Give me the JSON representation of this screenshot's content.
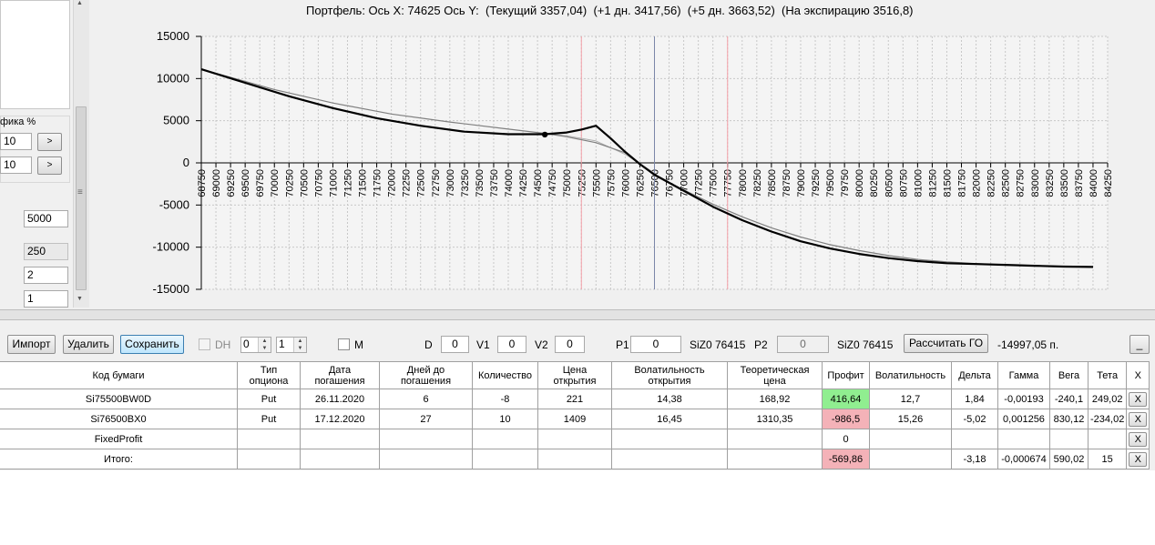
{
  "left_panel": {
    "group_label": "фика %",
    "row1_value": "10",
    "row2_value": "10",
    "step_button": ">",
    "field_a": "5000",
    "field_b": "250",
    "field_c": "2",
    "field_d": "1",
    "scroll_grip": "≡"
  },
  "chart": {
    "title": "Портфель: Ось X: 74625 Ось Y:  (Текущий 3357,04)  (+1 дн. 3417,56)  (+5 дн. 3663,52)  (На экспирацию 3516,8)"
  },
  "chart_data": {
    "type": "line",
    "x_ticks": [
      "68750",
      "69000",
      "69250",
      "69500",
      "69750",
      "70000",
      "70250",
      "70500",
      "70750",
      "71000",
      "71250",
      "71500",
      "71750",
      "72000",
      "72250",
      "72500",
      "72750",
      "73000",
      "73250",
      "73500",
      "73750",
      "74000",
      "74250",
      "74500",
      "74750",
      "75000",
      "75250",
      "75500",
      "75750",
      "76000",
      "76250",
      "76500",
      "76750",
      "77000",
      "77250",
      "77500",
      "77750",
      "78000",
      "78250",
      "78500",
      "78750",
      "79000",
      "79250",
      "79500",
      "79750",
      "80000",
      "80250",
      "80500",
      "80750",
      "81000",
      "81250",
      "81500",
      "81750",
      "82000",
      "82250",
      "82500",
      "82750",
      "83000",
      "83250",
      "83500",
      "83750",
      "84000",
      "84250"
    ],
    "y_ticks": [
      "15000",
      "10000",
      "5000",
      "0",
      "-5000",
      "-10000",
      "-15000"
    ],
    "xlim": [
      68750,
      84250
    ],
    "ylim": [
      -15000,
      15000
    ],
    "grid": true,
    "series": [
      {
        "color": "#000000",
        "x": [
          68750,
          69500,
          70250,
          71000,
          71750,
          72500,
          73250,
          74000,
          74625,
          75000,
          75250,
          75500,
          75750,
          76000,
          76250,
          76500,
          77000,
          77500,
          78000,
          78500,
          79000,
          79500,
          80000,
          80500,
          81000,
          81500,
          82000,
          82500,
          83000,
          83500,
          84000
        ],
        "y": [
          11100,
          9500,
          7900,
          6500,
          5300,
          4400,
          3700,
          3400,
          3400,
          3600,
          3950,
          4400,
          2900,
          1300,
          -150,
          -1400,
          -3300,
          -5200,
          -6800,
          -8150,
          -9300,
          -10150,
          -10800,
          -11300,
          -11650,
          -11900,
          -12000,
          -12100,
          -12200,
          -12300,
          -12350
        ]
      },
      {
        "color": "#808080",
        "x": [
          68750,
          70000,
          71000,
          72000,
          73000,
          74000,
          74625,
          75000,
          75500,
          76000,
          76250,
          76500,
          77000,
          77500,
          78000,
          78500,
          79000,
          79500,
          80000,
          80500,
          81000,
          81500,
          82000,
          82500,
          83000,
          83500,
          84000
        ],
        "y": [
          11100,
          8700,
          7100,
          5800,
          4850,
          4000,
          3500,
          3100,
          2400,
          1200,
          -150,
          -1500,
          -3200,
          -4900,
          -6400,
          -7700,
          -8800,
          -9700,
          -10400,
          -11000,
          -11450,
          -11750,
          -11950,
          -12100,
          -12200,
          -12300,
          -12350
        ]
      },
      {
        "color": "#b0b0b0",
        "x": [
          74625,
          75000,
          75500,
          76000,
          76250,
          76500
        ],
        "y": [
          3500,
          3200,
          2600,
          1000,
          -100,
          -1200
        ]
      }
    ],
    "current_point": {
      "x": 74625,
      "y": 3357.04
    },
    "vertical_lines": [
      {
        "x": 75250,
        "color": "#f4a0a8"
      },
      {
        "x": 76500,
        "color": "#7b86a8"
      },
      {
        "x": 77750,
        "color": "#f4a0a8"
      }
    ]
  },
  "toolbar": {
    "import_label": "Импорт",
    "delete_label": "Удалить",
    "save_label": "Сохранить",
    "dh_label": "DH",
    "spin1_value": "0",
    "spin2_value": "1",
    "m_label": "M",
    "d_label": "D",
    "d_value": "0",
    "v1_label": "V1",
    "v1_value": "0",
    "v2_label": "V2",
    "v2_value": "0",
    "p1_label": "P1",
    "p1_value": "0",
    "p1_instrument": "SiZ0 76415",
    "p2_label": "P2",
    "p2_value": "0",
    "p2_instrument": "SiZ0 76415",
    "calc_label": "Рассчитать ГО",
    "calc_result": "-14997,05 п.",
    "minimize_label": "_"
  },
  "grid": {
    "headers": [
      "Код бумаги",
      "Тип опциона",
      "Дата погашения",
      "Дней до погашения",
      "Количество",
      "Цена открытия",
      "Волатильность открытия",
      "Теоретическая цена",
      "Профит",
      "Волатильность",
      "Дельта",
      "Гамма",
      "Вега",
      "Тета",
      "X"
    ],
    "rows": [
      [
        "Si75500BW0D",
        "Put",
        "26.11.2020",
        "6",
        "-8",
        "221",
        "14,38",
        "168,92",
        "416,64",
        "12,7",
        "1,84",
        "-0,00193",
        "-240,1",
        "249,02",
        "X"
      ],
      [
        "Si76500BX0",
        "Put",
        "17.12.2020",
        "27",
        "10",
        "1409",
        "16,45",
        "1310,35",
        "-986,5",
        "15,26",
        "-5,02",
        "0,001256",
        "830,12",
        "-234,02",
        "X"
      ],
      [
        "FixedProfit",
        "",
        "",
        "",
        "",
        "",
        "",
        "",
        "0",
        "",
        "",
        "",
        "",
        "",
        "X"
      ],
      [
        "Итого:",
        "",
        "",
        "",
        "",
        "",
        "",
        "",
        "-569,86",
        "",
        "-3,18",
        "-0,000674",
        "590,02",
        "15",
        "X"
      ]
    ],
    "profit_colors": {
      "positive": "#90ee90",
      "negative": "#f4b2b8"
    }
  }
}
